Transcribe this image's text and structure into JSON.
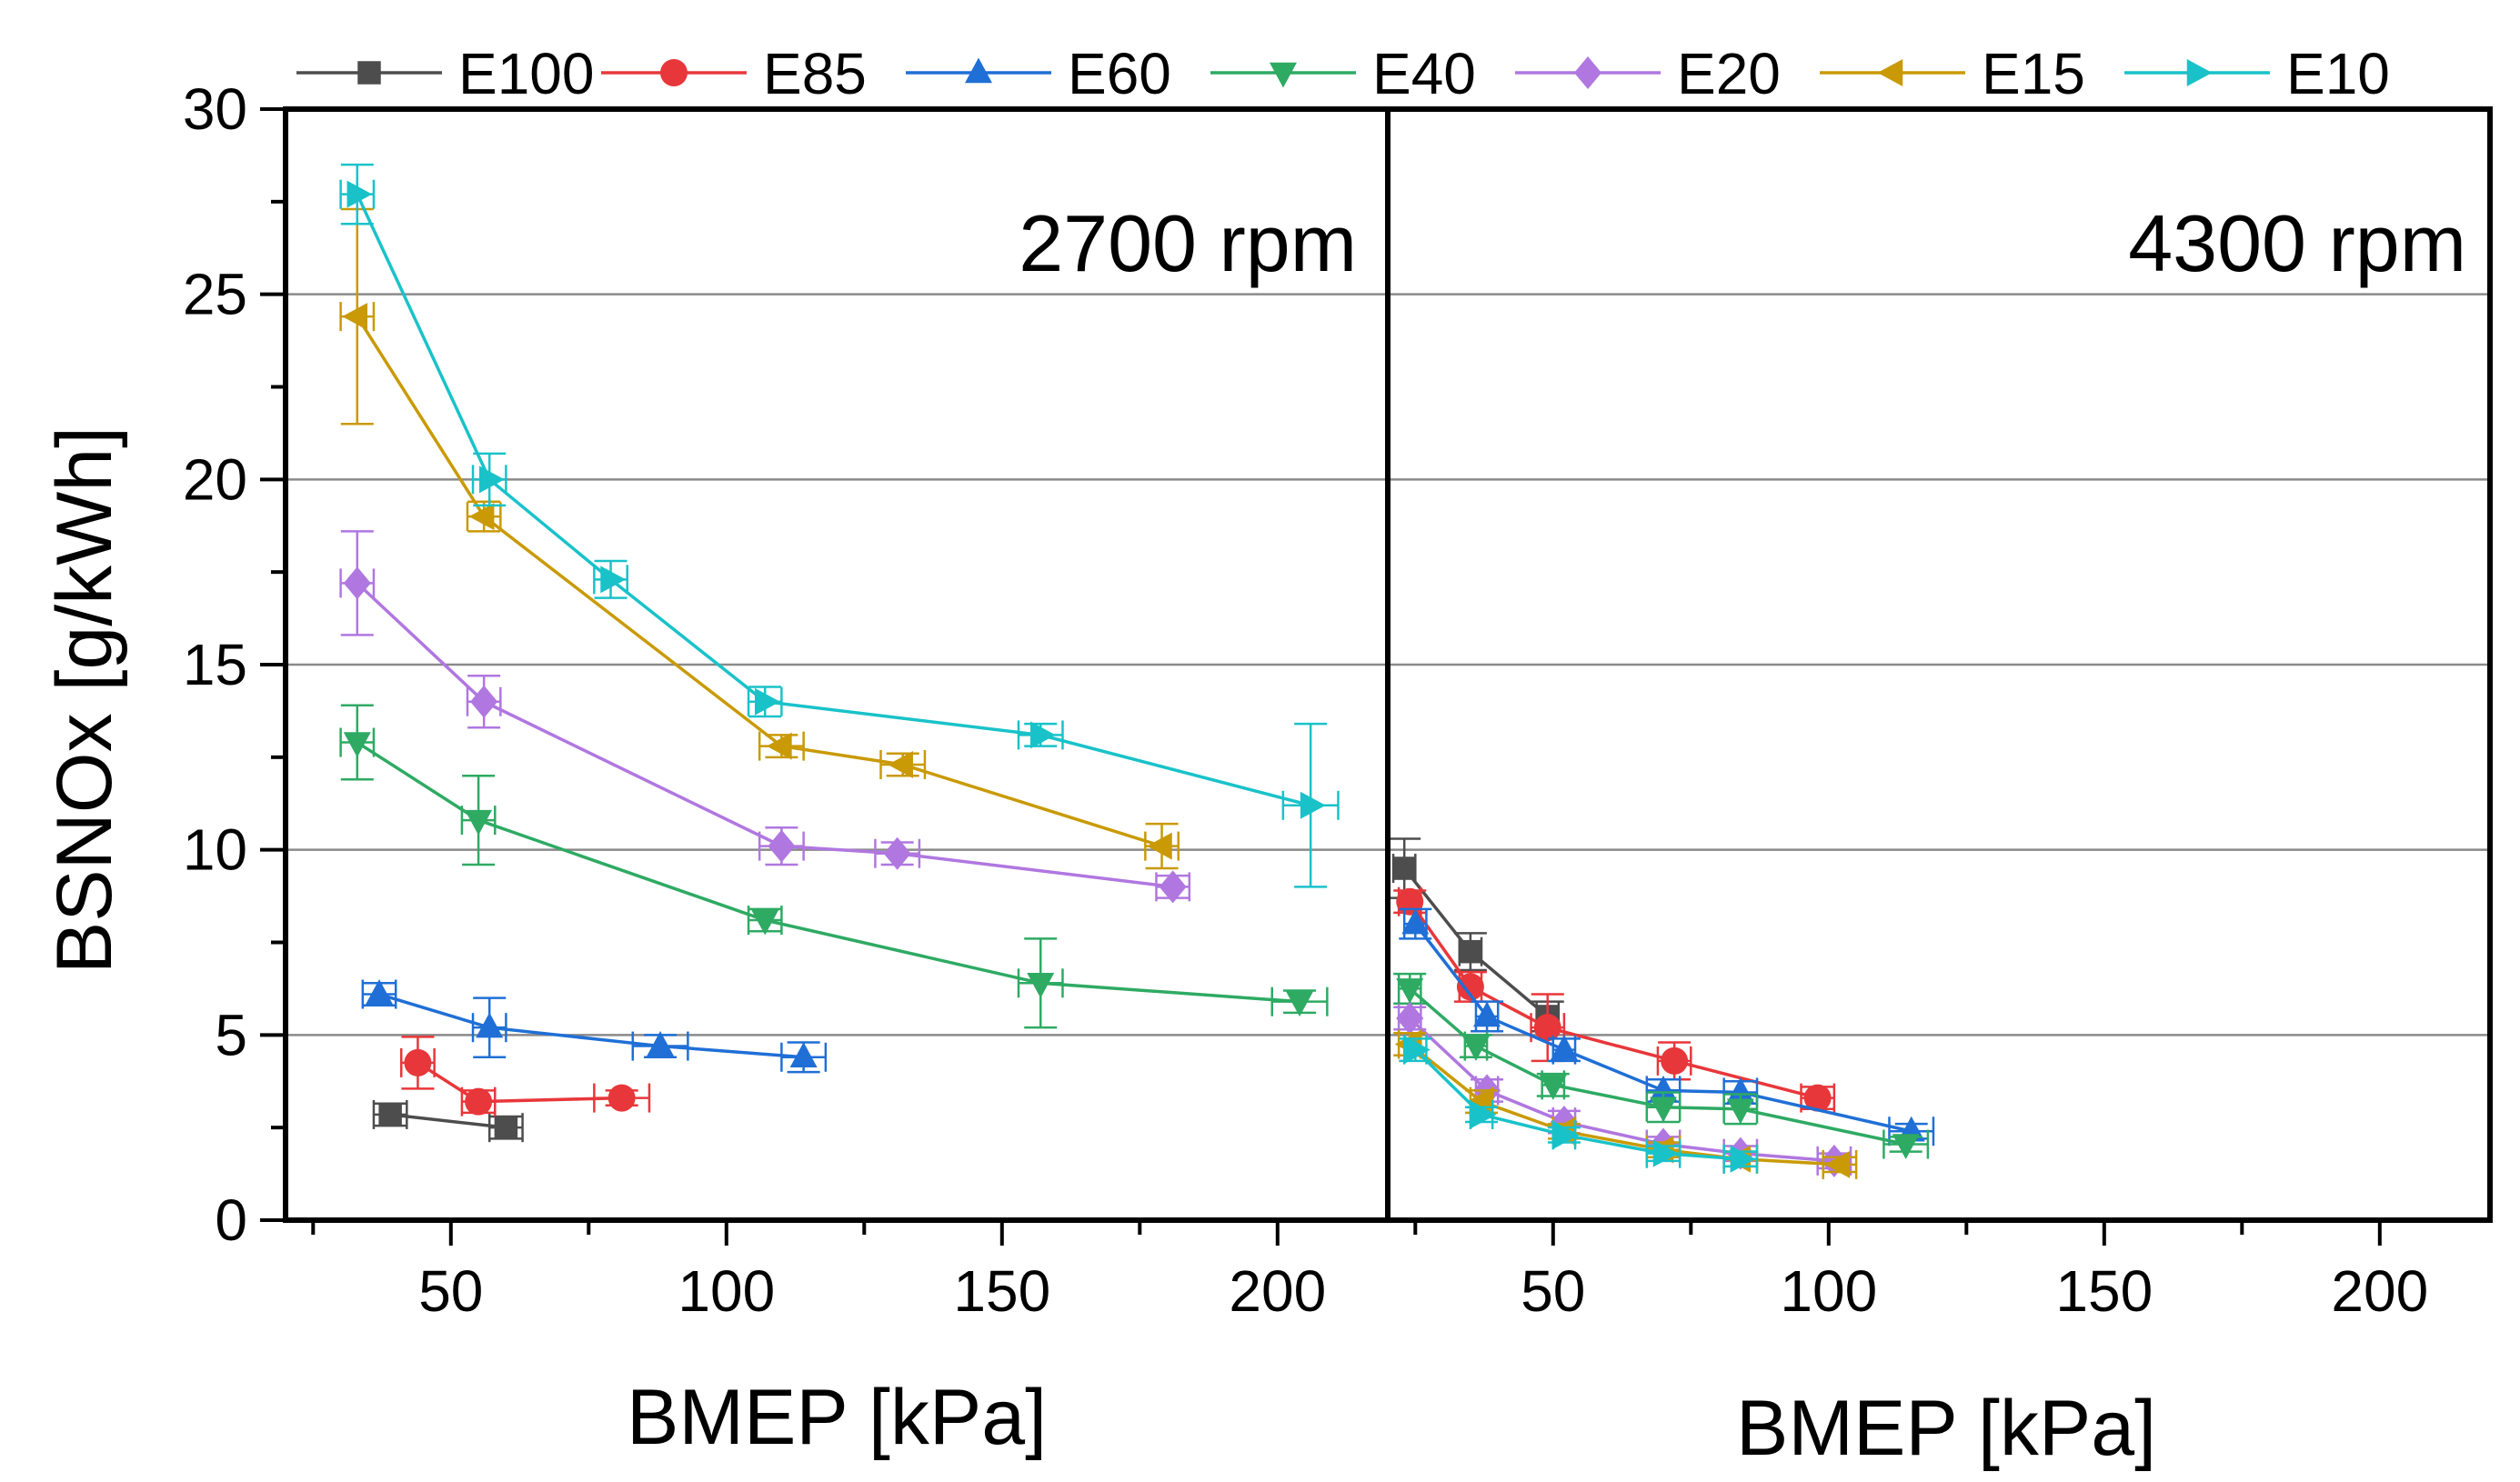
{
  "chart_data": {
    "type": "line",
    "ylabel": "BSNOx [g/kWh]",
    "ylim": [
      0,
      30
    ],
    "yticks": [
      0,
      5,
      10,
      15,
      20,
      25,
      30
    ],
    "xticks": [
      50,
      100,
      150,
      200
    ],
    "grid": "horizontal at major y ticks",
    "legend_position": "top",
    "series_styles": [
      {
        "name": "E100",
        "color": "#4d4d4d",
        "marker": "square"
      },
      {
        "name": "E85",
        "color": "#e8373a",
        "marker": "circle"
      },
      {
        "name": "E60",
        "color": "#1f6fd6",
        "marker": "triangle-up"
      },
      {
        "name": "E40",
        "color": "#2eaa63",
        "marker": "triangle-down"
      },
      {
        "name": "E20",
        "color": "#b077e0",
        "marker": "diamond"
      },
      {
        "name": "E15",
        "color": "#c99a06",
        "marker": "triangle-left"
      },
      {
        "name": "E10",
        "color": "#19c2c9",
        "marker": "triangle-right"
      }
    ],
    "panels": [
      {
        "label": "2700 rpm",
        "xlabel": "BMEP [kPa]",
        "xlim": [
          20,
          220
        ],
        "series": [
          {
            "name": "E100",
            "points": [
              {
                "x": 39,
                "y": 2.85,
                "yerr": 0.3,
                "xerr": 3
              },
              {
                "x": 60,
                "y": 2.5,
                "yerr": 0.3,
                "xerr": 3
              }
            ]
          },
          {
            "name": "E85",
            "points": [
              {
                "x": 44,
                "y": 4.25,
                "yerr": 0.7,
                "xerr": 3
              },
              {
                "x": 55,
                "y": 3.2,
                "yerr": 0.3,
                "xerr": 3
              },
              {
                "x": 81,
                "y": 3.3,
                "yerr": 0.2,
                "xerr": 5
              }
            ]
          },
          {
            "name": "E60",
            "points": [
              {
                "x": 37,
                "y": 6.1,
                "yerr": 0.3,
                "xerr": 3
              },
              {
                "x": 57,
                "y": 5.2,
                "yerr": 0.8,
                "xerr": 3
              },
              {
                "x": 88,
                "y": 4.7,
                "yerr": 0.3,
                "xerr": 5
              },
              {
                "x": 114,
                "y": 4.4,
                "yerr": 0.4,
                "xerr": 4
              }
            ]
          },
          {
            "name": "E40",
            "points": [
              {
                "x": 33,
                "y": 12.9,
                "yerr": 1.0,
                "xerr": 3
              },
              {
                "x": 55,
                "y": 10.8,
                "yerr": 1.2,
                "xerr": 3
              },
              {
                "x": 107,
                "y": 8.1,
                "yerr": 0.3,
                "xerr": 3
              },
              {
                "x": 157,
                "y": 6.4,
                "yerr": 1.2,
                "xerr": 4
              },
              {
                "x": 204,
                "y": 5.9,
                "yerr": 0.3,
                "xerr": 5
              }
            ]
          },
          {
            "name": "E20",
            "points": [
              {
                "x": 33,
                "y": 17.2,
                "yerr": 1.4,
                "xerr": 3
              },
              {
                "x": 56,
                "y": 14.0,
                "yerr": 0.7,
                "xerr": 3
              },
              {
                "x": 110,
                "y": 10.1,
                "yerr": 0.5,
                "xerr": 4
              },
              {
                "x": 131,
                "y": 9.9,
                "yerr": 0.3,
                "xerr": 4
              },
              {
                "x": 181,
                "y": 9.0,
                "yerr": 0.3,
                "xerr": 3
              }
            ]
          },
          {
            "name": "E15",
            "points": [
              {
                "x": 33,
                "y": 24.4,
                "yerr": 2.9,
                "xerr": 3
              },
              {
                "x": 56,
                "y": 19.0,
                "yerr": 0.4,
                "xerr": 3
              },
              {
                "x": 110,
                "y": 12.8,
                "yerr": 0.3,
                "xerr": 4
              },
              {
                "x": 132,
                "y": 12.3,
                "yerr": 0.3,
                "xerr": 4
              },
              {
                "x": 179,
                "y": 10.1,
                "yerr": 0.6,
                "xerr": 3
              }
            ]
          },
          {
            "name": "E10",
            "points": [
              {
                "x": 33,
                "y": 27.7,
                "yerr": 0.8,
                "xerr": 3
              },
              {
                "x": 57,
                "y": 20.0,
                "yerr": 0.7,
                "xerr": 3
              },
              {
                "x": 79,
                "y": 17.3,
                "yerr": 0.5,
                "xerr": 3
              },
              {
                "x": 107,
                "y": 14.0,
                "yerr": 0.4,
                "xerr": 3
              },
              {
                "x": 157,
                "y": 13.1,
                "yerr": 0.3,
                "xerr": 4
              },
              {
                "x": 206,
                "y": 11.2,
                "yerr": 2.2,
                "xerr": 5
              }
            ]
          }
        ]
      },
      {
        "label": "4300 rpm",
        "xlabel": "BMEP [kPa]",
        "xlim": [
          20,
          220
        ],
        "series": [
          {
            "name": "E100",
            "points": [
              {
                "x": 23,
                "y": 9.5,
                "yerr": 0.8,
                "xerr": 2
              },
              {
                "x": 35,
                "y": 7.25,
                "yerr": 0.5,
                "xerr": 2
              },
              {
                "x": 49,
                "y": 5.5,
                "yerr": 0.4,
                "xerr": 2
              }
            ]
          },
          {
            "name": "E85",
            "points": [
              {
                "x": 24,
                "y": 8.6,
                "yerr": 0.3,
                "xerr": 2
              },
              {
                "x": 35,
                "y": 6.3,
                "yerr": 0.4,
                "xerr": 2
              },
              {
                "x": 49,
                "y": 5.2,
                "yerr": 0.9,
                "xerr": 3
              },
              {
                "x": 72,
                "y": 4.3,
                "yerr": 0.5,
                "xerr": 3
              },
              {
                "x": 98,
                "y": 3.3,
                "yerr": 0.3,
                "xerr": 3
              }
            ]
          },
          {
            "name": "E60",
            "points": [
              {
                "x": 25,
                "y": 8.0,
                "yerr": 0.4,
                "xerr": 2
              },
              {
                "x": 38,
                "y": 5.5,
                "yerr": 0.4,
                "xerr": 2
              },
              {
                "x": 52,
                "y": 4.6,
                "yerr": 0.3,
                "xerr": 2
              },
              {
                "x": 70,
                "y": 3.5,
                "yerr": 0.3,
                "xerr": 3
              },
              {
                "x": 84,
                "y": 3.45,
                "yerr": 0.3,
                "xerr": 3
              },
              {
                "x": 115,
                "y": 2.4,
                "yerr": 0.2,
                "xerr": 4
              }
            ]
          },
          {
            "name": "E40",
            "points": [
              {
                "x": 24,
                "y": 6.25,
                "yerr": 0.4,
                "xerr": 2
              },
              {
                "x": 36,
                "y": 4.7,
                "yerr": 0.3,
                "xerr": 2
              },
              {
                "x": 50,
                "y": 3.65,
                "yerr": 0.3,
                "xerr": 2
              },
              {
                "x": 70,
                "y": 3.05,
                "yerr": 0.4,
                "xerr": 3
              },
              {
                "x": 84,
                "y": 3.0,
                "yerr": 0.4,
                "xerr": 3
              },
              {
                "x": 114,
                "y": 2.05,
                "yerr": 0.2,
                "xerr": 4
              }
            ]
          },
          {
            "name": "E20",
            "points": [
              {
                "x": 24,
                "y": 5.45,
                "yerr": 0.3,
                "xerr": 2
              },
              {
                "x": 38,
                "y": 3.5,
                "yerr": 0.3,
                "xerr": 2
              },
              {
                "x": 52,
                "y": 2.65,
                "yerr": 0.3,
                "xerr": 2
              },
              {
                "x": 70,
                "y": 2.05,
                "yerr": 0.2,
                "xerr": 3
              },
              {
                "x": 84,
                "y": 1.8,
                "yerr": 0.2,
                "xerr": 3
              },
              {
                "x": 101,
                "y": 1.6,
                "yerr": 0.2,
                "xerr": 3
              }
            ]
          },
          {
            "name": "E15",
            "points": [
              {
                "x": 24,
                "y": 4.75,
                "yerr": 0.3,
                "xerr": 2
              },
              {
                "x": 37,
                "y": 3.2,
                "yerr": 0.3,
                "xerr": 2
              },
              {
                "x": 52,
                "y": 2.4,
                "yerr": 0.2,
                "xerr": 2
              },
              {
                "x": 70,
                "y": 1.9,
                "yerr": 0.2,
                "xerr": 3
              },
              {
                "x": 84,
                "y": 1.65,
                "yerr": 0.2,
                "xerr": 3
              },
              {
                "x": 102,
                "y": 1.5,
                "yerr": 0.2,
                "xerr": 3
              }
            ]
          },
          {
            "name": "E10",
            "points": [
              {
                "x": 25,
                "y": 4.6,
                "yerr": 0.3,
                "xerr": 2
              },
              {
                "x": 37,
                "y": 2.85,
                "yerr": 0.2,
                "xerr": 2
              },
              {
                "x": 52,
                "y": 2.3,
                "yerr": 0.2,
                "xerr": 2
              },
              {
                "x": 70,
                "y": 1.8,
                "yerr": 0.2,
                "xerr": 3
              },
              {
                "x": 84,
                "y": 1.65,
                "yerr": 0.2,
                "xerr": 3
              }
            ]
          }
        ]
      }
    ]
  }
}
